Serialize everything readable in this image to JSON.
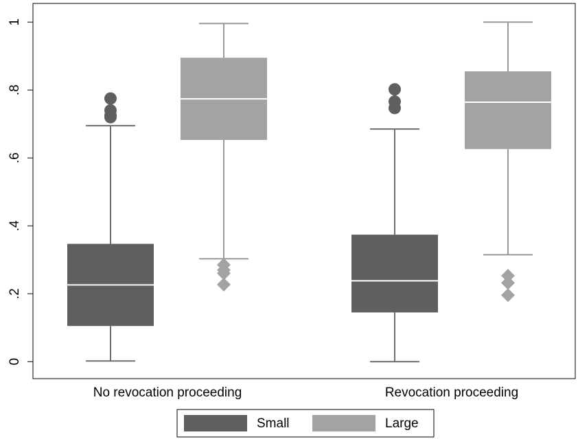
{
  "chart_data": {
    "type": "box",
    "categories": [
      "No revocation proceeding",
      "Revocation proceeding"
    ],
    "series": [
      {
        "name": "Small",
        "color": "#5f5f5f",
        "whisker_color": "#6e6e6e",
        "marker": "circle",
        "boxes": [
          {
            "whislo": 0.002,
            "q1": 0.105,
            "med": 0.226,
            "q3": 0.347,
            "whishi": 0.695,
            "fliers": [
              0.775,
              0.74,
              0.725,
              0.72
            ]
          },
          {
            "whislo": 0.0,
            "q1": 0.145,
            "med": 0.238,
            "q3": 0.374,
            "whishi": 0.685,
            "fliers": [
              0.802,
              0.766,
              0.747
            ]
          }
        ]
      },
      {
        "name": "Large",
        "color": "#a3a3a3",
        "whisker_color": "#999999",
        "marker": "diamond",
        "boxes": [
          {
            "whislo": 0.303,
            "q1": 0.653,
            "med": 0.774,
            "q3": 0.895,
            "whishi": 0.996,
            "fliers": [
              0.285,
              0.27,
              0.26,
              0.227
            ]
          },
          {
            "whislo": 0.315,
            "q1": 0.626,
            "med": 0.764,
            "q3": 0.855,
            "whishi": 1.0,
            "fliers": [
              0.253,
              0.232,
              0.196
            ]
          }
        ]
      }
    ],
    "ylim": [
      -0.05,
      1.055
    ],
    "yticks": [
      0,
      {
        "value": 0.2,
        "label": ".2"
      },
      {
        "value": 0.4,
        "label": ".4"
      },
      {
        "value": 0.6,
        "label": ".6"
      },
      {
        "value": 0.8,
        "label": ".8"
      },
      1
    ],
    "grid": false,
    "legend": "bottom"
  }
}
